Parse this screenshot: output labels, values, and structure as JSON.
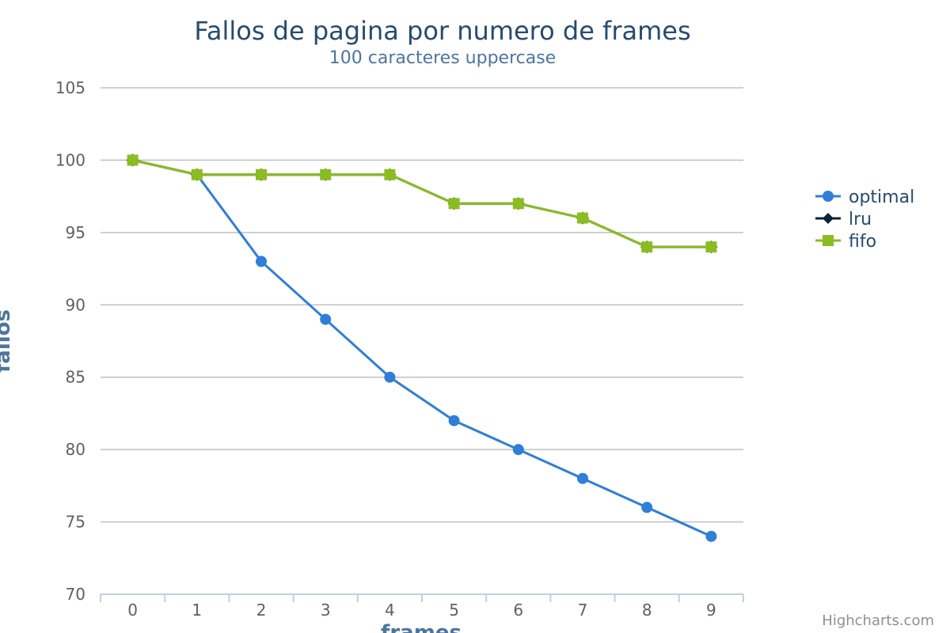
{
  "chart_data": {
    "type": "line",
    "title": "Fallos de pagina por numero de frames",
    "subtitle": "100 caracteres uppercase",
    "xlabel": "frames",
    "ylabel": "fallos",
    "categories": [
      "0",
      "1",
      "2",
      "3",
      "4",
      "5",
      "6",
      "7",
      "8",
      "9"
    ],
    "ylim": [
      70,
      105
    ],
    "yticks": [
      70,
      75,
      80,
      85,
      90,
      95,
      100,
      105
    ],
    "grid": true,
    "legend_position": "right",
    "series": [
      {
        "name": "optimal",
        "color": "#2f7ed8",
        "marker": "circle",
        "values": [
          100,
          99,
          93,
          89,
          85,
          82,
          80,
          78,
          76,
          74
        ]
      },
      {
        "name": "lru",
        "color": "#0d233a",
        "marker": "diamond",
        "values": [
          100,
          99,
          99,
          99,
          99,
          97,
          97,
          96,
          94,
          94
        ]
      },
      {
        "name": "fifo",
        "color": "#8bbc21",
        "marker": "square",
        "values": [
          100,
          99,
          99,
          99,
          99,
          97,
          97,
          96,
          94,
          94
        ]
      }
    ],
    "credits": "Highcharts.com"
  }
}
